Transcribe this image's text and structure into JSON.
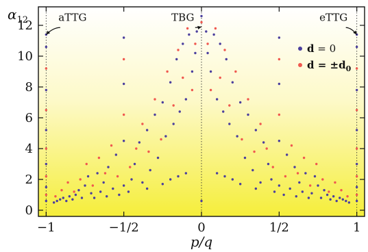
{
  "chart_data": {
    "type": "scatter",
    "xlabel": "p/q",
    "ylabel": "α12",
    "ylabel_base": "α",
    "ylabel_sub": "12",
    "xlim": [
      -1.05,
      1.05
    ],
    "ylim": [
      -0.4,
      13.2
    ],
    "x_ticks": [
      {
        "value": -1,
        "label": "−1"
      },
      {
        "value": -0.5,
        "label": "−1/2"
      },
      {
        "value": 0,
        "label": "0"
      },
      {
        "value": 0.5,
        "label": "1/2"
      },
      {
        "value": 1,
        "label": "1"
      }
    ],
    "y_ticks": [
      0,
      2,
      4,
      6,
      8,
      10,
      12
    ],
    "reference_lines_x": [
      -1,
      0,
      1
    ],
    "background_gradient": {
      "top": "#ffffff",
      "bottom": "#f5ee3a"
    },
    "annotations": [
      {
        "text": "aTTG",
        "x": -0.83,
        "y": 12.3,
        "arrow_to": [
          -1.0,
          11.4
        ]
      },
      {
        "text": "TBG",
        "x": -0.12,
        "y": 12.3,
        "arrow_to": [
          0.0,
          11.9
        ]
      },
      {
        "text": "eTTG",
        "x": 0.85,
        "y": 12.3,
        "arrow_to": [
          1.0,
          11.4
        ]
      }
    ],
    "legend": {
      "placement": "top-right",
      "entries": [
        {
          "series": 0,
          "label_main": "d",
          "label_rest": " = 0"
        },
        {
          "series": 1,
          "label_main": "d",
          "label_rest": " = ±d",
          "label_sub": "0"
        }
      ]
    },
    "series": [
      {
        "color": "#4b3f9e",
        "points": [
          [
            -1.0,
            0.6
          ],
          [
            -1.0,
            1.5
          ],
          [
            -1.0,
            3.0
          ],
          [
            -1.0,
            5.2
          ],
          [
            -1.0,
            7.8
          ],
          [
            -1.0,
            10.6
          ],
          [
            -1.0,
            11.4
          ],
          [
            -0.95,
            0.5
          ],
          [
            -0.93,
            0.6
          ],
          [
            -0.91,
            0.7
          ],
          [
            -0.89,
            0.8
          ],
          [
            -0.87,
            0.6
          ],
          [
            -0.85,
            0.9
          ],
          [
            -0.83,
            0.7
          ],
          [
            -0.81,
            1.0
          ],
          [
            -0.79,
            1.3
          ],
          [
            -0.77,
            0.8
          ],
          [
            -0.75,
            1.6
          ],
          [
            -0.73,
            2.2
          ],
          [
            -0.71,
            1.1
          ],
          [
            -0.69,
            0.8
          ],
          [
            -0.67,
            2.4
          ],
          [
            -0.65,
            1.2
          ],
          [
            -0.63,
            1.8
          ],
          [
            -0.61,
            0.9
          ],
          [
            -0.6,
            2.8
          ],
          [
            -0.57,
            1.4
          ],
          [
            -0.55,
            3.6
          ],
          [
            -0.53,
            1.0
          ],
          [
            -0.5,
            1.6
          ],
          [
            -0.5,
            4.5
          ],
          [
            -0.5,
            8.2
          ],
          [
            -0.5,
            11.2
          ],
          [
            -0.47,
            1.2
          ],
          [
            -0.45,
            2.0
          ],
          [
            -0.43,
            3.0
          ],
          [
            -0.4,
            4.4
          ],
          [
            -0.38,
            1.8
          ],
          [
            -0.35,
            5.2
          ],
          [
            -0.33,
            2.6
          ],
          [
            -0.3,
            6.2
          ],
          [
            -0.28,
            3.4
          ],
          [
            -0.25,
            7.0
          ],
          [
            -0.23,
            4.8
          ],
          [
            -0.2,
            8.3
          ],
          [
            -0.18,
            5.6
          ],
          [
            -0.16,
            9.8
          ],
          [
            -0.14,
            6.4
          ],
          [
            -0.12,
            10.8
          ],
          [
            -0.1,
            7.2
          ],
          [
            -0.08,
            11.4
          ],
          [
            -0.06,
            9.0
          ],
          [
            -0.04,
            10.2
          ],
          [
            -0.03,
            11.6
          ],
          [
            -0.2,
            2.0
          ],
          [
            -0.15,
            2.2
          ],
          [
            -0.1,
            2.4
          ],
          [
            -0.35,
            1.4
          ],
          [
            -0.25,
            1.7
          ],
          [
            0.0,
            0.6
          ],
          [
            0.0,
            12.6
          ],
          [
            0.03,
            11.6
          ],
          [
            0.04,
            10.2
          ],
          [
            0.06,
            9.0
          ],
          [
            0.08,
            11.4
          ],
          [
            0.1,
            7.2
          ],
          [
            0.12,
            10.8
          ],
          [
            0.14,
            6.4
          ],
          [
            0.16,
            9.8
          ],
          [
            0.18,
            5.6
          ],
          [
            0.2,
            8.3
          ],
          [
            0.23,
            4.8
          ],
          [
            0.25,
            7.0
          ],
          [
            0.28,
            3.4
          ],
          [
            0.3,
            6.2
          ],
          [
            0.33,
            2.6
          ],
          [
            0.35,
            5.2
          ],
          [
            0.38,
            1.8
          ],
          [
            0.4,
            4.4
          ],
          [
            0.43,
            3.0
          ],
          [
            0.45,
            2.0
          ],
          [
            0.47,
            1.2
          ],
          [
            0.1,
            2.4
          ],
          [
            0.15,
            2.2
          ],
          [
            0.2,
            2.0
          ],
          [
            0.25,
            1.7
          ],
          [
            0.35,
            1.4
          ],
          [
            0.5,
            1.6
          ],
          [
            0.5,
            4.5
          ],
          [
            0.5,
            8.2
          ],
          [
            0.5,
            11.2
          ],
          [
            0.53,
            1.0
          ],
          [
            0.55,
            3.6
          ],
          [
            0.57,
            1.4
          ],
          [
            0.6,
            2.8
          ],
          [
            0.61,
            0.9
          ],
          [
            0.63,
            1.8
          ],
          [
            0.65,
            1.2
          ],
          [
            0.67,
            2.4
          ],
          [
            0.69,
            0.8
          ],
          [
            0.71,
            1.1
          ],
          [
            0.73,
            2.2
          ],
          [
            0.75,
            1.6
          ],
          [
            0.77,
            0.8
          ],
          [
            0.79,
            1.3
          ],
          [
            0.81,
            1.0
          ],
          [
            0.83,
            0.7
          ],
          [
            0.85,
            0.9
          ],
          [
            0.87,
            0.6
          ],
          [
            0.89,
            0.8
          ],
          [
            0.91,
            0.7
          ],
          [
            0.93,
            0.6
          ],
          [
            0.95,
            0.5
          ],
          [
            1.0,
            0.6
          ],
          [
            1.0,
            1.5
          ],
          [
            1.0,
            3.0
          ],
          [
            1.0,
            5.2
          ],
          [
            1.0,
            7.8
          ],
          [
            1.0,
            10.6
          ],
          [
            1.0,
            11.4
          ]
        ]
      },
      {
        "color": "#f0584f",
        "points": [
          [
            -1.0,
            1.0
          ],
          [
            -1.0,
            2.2
          ],
          [
            -1.0,
            4.0
          ],
          [
            -1.0,
            6.5
          ],
          [
            -1.0,
            9.2
          ],
          [
            -0.94,
            0.9
          ],
          [
            -0.9,
            1.3
          ],
          [
            -0.86,
            1.8
          ],
          [
            -0.82,
            1.2
          ],
          [
            -0.78,
            2.0
          ],
          [
            -0.74,
            3.0
          ],
          [
            -0.7,
            1.6
          ],
          [
            -0.66,
            3.4
          ],
          [
            -0.62,
            2.4
          ],
          [
            -0.58,
            4.2
          ],
          [
            -0.54,
            2.2
          ],
          [
            -0.5,
            6.2
          ],
          [
            -0.5,
            9.8
          ],
          [
            -0.46,
            2.8
          ],
          [
            -0.42,
            4.0
          ],
          [
            -0.38,
            5.6
          ],
          [
            -0.34,
            3.8
          ],
          [
            -0.3,
            7.2
          ],
          [
            -0.26,
            4.6
          ],
          [
            -0.22,
            9.0
          ],
          [
            -0.18,
            6.8
          ],
          [
            -0.15,
            10.4
          ],
          [
            -0.12,
            8.6
          ],
          [
            -0.09,
            11.8
          ],
          [
            -0.06,
            7.8
          ],
          [
            -0.04,
            10.8
          ],
          [
            0.0,
            12.2
          ],
          [
            0.04,
            10.8
          ],
          [
            0.06,
            7.8
          ],
          [
            0.09,
            11.8
          ],
          [
            0.12,
            8.6
          ],
          [
            0.15,
            10.4
          ],
          [
            0.18,
            6.8
          ],
          [
            0.22,
            9.0
          ],
          [
            0.26,
            4.6
          ],
          [
            0.3,
            7.2
          ],
          [
            0.34,
            3.8
          ],
          [
            0.38,
            5.6
          ],
          [
            0.42,
            4.0
          ],
          [
            0.46,
            2.8
          ],
          [
            0.5,
            6.2
          ],
          [
            0.5,
            9.8
          ],
          [
            0.54,
            2.2
          ],
          [
            0.58,
            4.2
          ],
          [
            0.62,
            2.4
          ],
          [
            0.66,
            3.4
          ],
          [
            0.7,
            1.6
          ],
          [
            0.74,
            3.0
          ],
          [
            0.78,
            2.0
          ],
          [
            0.82,
            1.2
          ],
          [
            0.86,
            1.8
          ],
          [
            0.9,
            1.3
          ],
          [
            0.94,
            0.9
          ],
          [
            1.0,
            1.0
          ],
          [
            1.0,
            2.2
          ],
          [
            1.0,
            4.0
          ],
          [
            1.0,
            6.5
          ],
          [
            1.0,
            9.2
          ]
        ]
      }
    ]
  }
}
